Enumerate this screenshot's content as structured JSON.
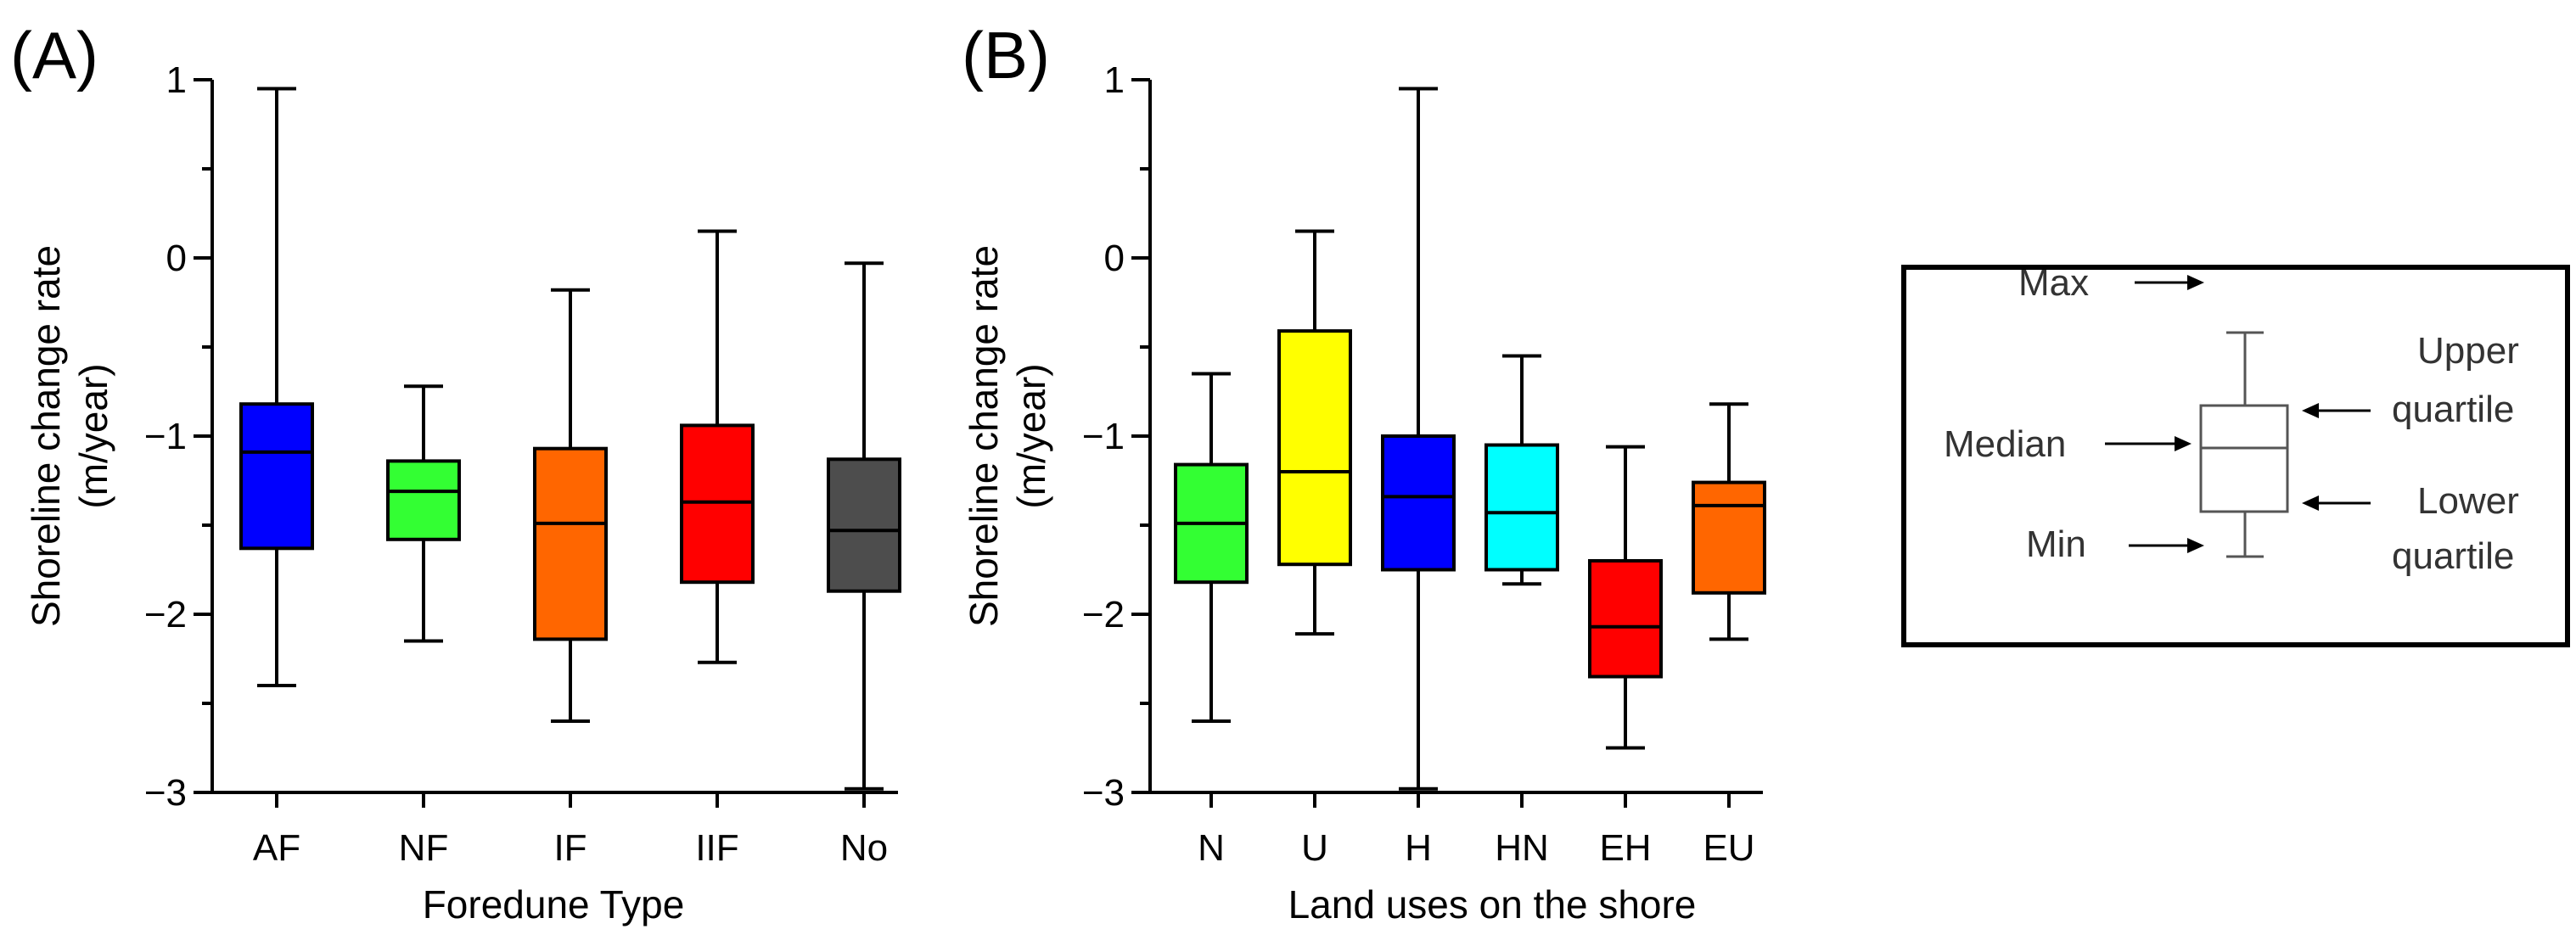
{
  "chart_data": [
    {
      "panel": "(A)",
      "type": "box",
      "xlabel": "Foredune Type",
      "ylabel": [
        "Shoreline change rate",
        "(m/year)"
      ],
      "ylim": [
        -3,
        1
      ],
      "yticks": [
        1,
        0,
        -1,
        -2,
        -3
      ],
      "ytick_labels": [
        "1",
        "0",
        "−1",
        "−2",
        "−3"
      ],
      "categories": [
        "AF",
        "NF",
        "IF",
        "IIF",
        "No"
      ],
      "boxes": [
        {
          "label": "AF",
          "min": -2.4,
          "q1": -1.63,
          "median": -1.09,
          "q3": -0.82,
          "max": 0.95,
          "color": "#0000FF"
        },
        {
          "label": "NF",
          "min": -2.15,
          "q1": -1.58,
          "median": -1.31,
          "q3": -1.14,
          "max": -0.72,
          "color": "#33FF33"
        },
        {
          "label": "IF",
          "min": -2.6,
          "q1": -2.14,
          "median": -1.49,
          "q3": -1.07,
          "max": -0.18,
          "color": "#FF6600"
        },
        {
          "label": "IIF",
          "min": -2.27,
          "q1": -1.82,
          "median": -1.37,
          "q3": -0.94,
          "max": 0.15,
          "color": "#FF0000"
        },
        {
          "label": "No",
          "min": -2.98,
          "q1": -1.87,
          "median": -1.53,
          "q3": -1.13,
          "max": -0.03,
          "color": "#4D4D4D"
        }
      ]
    },
    {
      "panel": "(B)",
      "type": "box",
      "xlabel": "Land uses on the shore",
      "ylabel": [
        "Shoreline change rate",
        "(m/year)"
      ],
      "ylim": [
        -3,
        1
      ],
      "yticks": [
        1,
        0,
        -1,
        -2,
        -3
      ],
      "ytick_labels": [
        "1",
        "0",
        "−1",
        "−2",
        "−3"
      ],
      "categories": [
        "N",
        "U",
        "H",
        "HN",
        "EH",
        "EU"
      ],
      "boxes": [
        {
          "label": "N",
          "min": -2.6,
          "q1": -1.82,
          "median": -1.49,
          "q3": -1.16,
          "max": -0.65,
          "color": "#33FF33"
        },
        {
          "label": "U",
          "min": -2.11,
          "q1": -1.72,
          "median": -1.2,
          "q3": -0.41,
          "max": 0.15,
          "color": "#FFFF00"
        },
        {
          "label": "H",
          "min": -2.98,
          "q1": -1.75,
          "median": -1.34,
          "q3": -1.0,
          "max": 0.95,
          "color": "#0000FF"
        },
        {
          "label": "HN",
          "min": -1.83,
          "q1": -1.75,
          "median": -1.43,
          "q3": -1.05,
          "max": -0.55,
          "color": "#00FFFF"
        },
        {
          "label": "EH",
          "min": -2.75,
          "q1": -2.35,
          "median": -2.07,
          "q3": -1.7,
          "max": -1.06,
          "color": "#FF0000"
        },
        {
          "label": "EU",
          "min": -2.14,
          "q1": -1.88,
          "median": -1.39,
          "q3": -1.26,
          "max": -0.82,
          "color": "#FF6600"
        }
      ]
    }
  ],
  "legend": {
    "labels": {
      "max": "Max",
      "median": "Median",
      "min": "Min",
      "upper": [
        "Upper",
        "quartile"
      ],
      "lower": [
        "Lower",
        "quartile"
      ]
    }
  }
}
